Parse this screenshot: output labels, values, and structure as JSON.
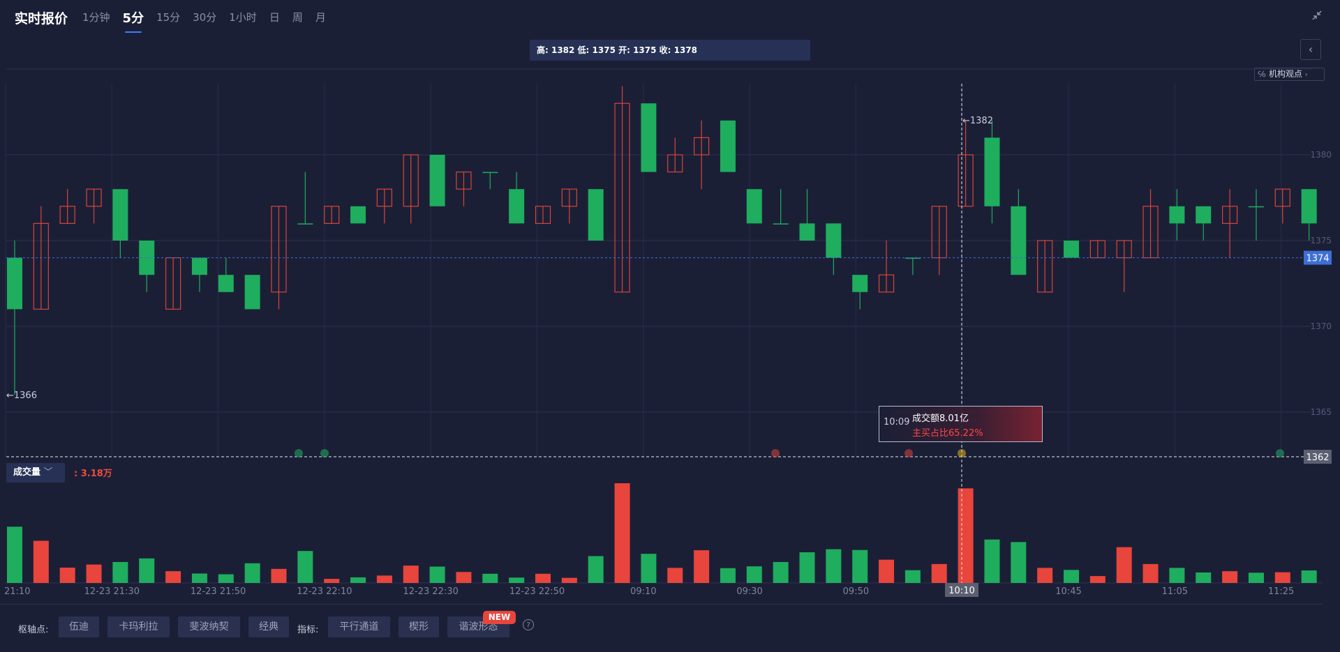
{
  "app": {
    "title": "实时报价"
  },
  "tabs": [
    {
      "label": "1分钟",
      "active": false
    },
    {
      "label": "5分",
      "active": true
    },
    {
      "label": "15分",
      "active": false
    },
    {
      "label": "30分",
      "active": false
    },
    {
      "label": "1小时",
      "active": false
    },
    {
      "label": "日",
      "active": false
    },
    {
      "label": "周",
      "active": false
    },
    {
      "label": "月",
      "active": false
    }
  ],
  "ohlc_text": "高: 1382 低: 1375 开: 1375 收: 1378",
  "institution_view": "机构观点",
  "volume": {
    "label": "成交量",
    "value": ": 3.18万"
  },
  "tooltip": {
    "time": "10:09",
    "amount": "成交额8.01亿",
    "ratio": "主买占比65.22%"
  },
  "price_tags": {
    "current": "1374",
    "cursor": "1362",
    "high_marker": "←1382",
    "low_marker": "←1366",
    "cursor_time": "10:10"
  },
  "bottom": {
    "pivot_label": "枢轴点:",
    "pivot_options": [
      "伍迪",
      "卡玛利拉",
      "斐波纳契",
      "经典"
    ],
    "indicator_label": "指标:",
    "indicator_options": [
      "平行通道",
      "楔形",
      "谐波形态"
    ],
    "new_badge": "NEW",
    "help": "?"
  },
  "colors": {
    "up": "#e8453c",
    "down": "#1fad5e",
    "background": "#1b1f36",
    "accent": "#3d6fd6"
  },
  "chart_data": {
    "type": "candlestick",
    "yticks": [
      1380,
      1375,
      1370,
      1365
    ],
    "xticks": [
      "21:10",
      "12-23 21:30",
      "12-23 21:50",
      "12-23 22:10",
      "12-23 22:30",
      "12-23 22:50",
      "09:10",
      "09:30",
      "09:50",
      "10:10",
      "10:45",
      "11:05",
      "11:25"
    ],
    "current_price": 1374,
    "candles": [
      {
        "o": 1374,
        "c": 1371,
        "h": 1375,
        "l": 1366
      },
      {
        "o": 1371,
        "c": 1376,
        "h": 1377,
        "l": 1371
      },
      {
        "o": 1376,
        "c": 1377,
        "h": 1378,
        "l": 1376
      },
      {
        "o": 1377,
        "c": 1378,
        "h": 1378,
        "l": 1376
      },
      {
        "o": 1378,
        "c": 1375,
        "h": 1378,
        "l": 1374
      },
      {
        "o": 1375,
        "c": 1373,
        "h": 1375,
        "l": 1372
      },
      {
        "o": 1371,
        "c": 1374,
        "h": 1374,
        "l": 1371
      },
      {
        "o": 1374,
        "c": 1373,
        "h": 1374,
        "l": 1372
      },
      {
        "o": 1373,
        "c": 1372,
        "h": 1374,
        "l": 1372
      },
      {
        "o": 1373,
        "c": 1371,
        "h": 1373,
        "l": 1371
      },
      {
        "o": 1372,
        "c": 1377,
        "h": 1377,
        "l": 1371
      },
      {
        "o": 1376,
        "c": 1376,
        "h": 1379,
        "l": 1376
      },
      {
        "o": 1376,
        "c": 1377,
        "h": 1377,
        "l": 1376
      },
      {
        "o": 1377,
        "c": 1376,
        "h": 1377,
        "l": 1376
      },
      {
        "o": 1377,
        "c": 1378,
        "h": 1378,
        "l": 1376
      },
      {
        "o": 1377,
        "c": 1380,
        "h": 1380,
        "l": 1376
      },
      {
        "o": 1380,
        "c": 1377,
        "h": 1380,
        "l": 1377
      },
      {
        "o": 1378,
        "c": 1379,
        "h": 1379,
        "l": 1377
      },
      {
        "o": 1379,
        "c": 1379,
        "h": 1379,
        "l": 1378
      },
      {
        "o": 1378,
        "c": 1376,
        "h": 1379,
        "l": 1376
      },
      {
        "o": 1376,
        "c": 1377,
        "h": 1377,
        "l": 1376
      },
      {
        "o": 1377,
        "c": 1378,
        "h": 1378,
        "l": 1376
      },
      {
        "o": 1378,
        "c": 1375,
        "h": 1378,
        "l": 1375
      },
      {
        "o": 1372,
        "c": 1383,
        "h": 1384,
        "l": 1372
      },
      {
        "o": 1383,
        "c": 1379,
        "h": 1383,
        "l": 1379
      },
      {
        "o": 1379,
        "c": 1380,
        "h": 1381,
        "l": 1379
      },
      {
        "o": 1380,
        "c": 1381,
        "h": 1382,
        "l": 1378
      },
      {
        "o": 1382,
        "c": 1379,
        "h": 1382,
        "l": 1379
      },
      {
        "o": 1378,
        "c": 1376,
        "h": 1378,
        "l": 1376
      },
      {
        "o": 1376,
        "c": 1376,
        "h": 1378,
        "l": 1376
      },
      {
        "o": 1376,
        "c": 1375,
        "h": 1378,
        "l": 1375
      },
      {
        "o": 1376,
        "c": 1374,
        "h": 1376,
        "l": 1373
      },
      {
        "o": 1373,
        "c": 1372,
        "h": 1373,
        "l": 1371
      },
      {
        "o": 1372,
        "c": 1373,
        "h": 1375,
        "l": 1372
      },
      {
        "o": 1374,
        "c": 1374,
        "h": 1374,
        "l": 1373
      },
      {
        "o": 1374,
        "c": 1377,
        "h": 1377,
        "l": 1373
      },
      {
        "o": 1377,
        "c": 1380,
        "h": 1382,
        "l": 1377
      },
      {
        "o": 1381,
        "c": 1377,
        "h": 1382,
        "l": 1376
      },
      {
        "o": 1377,
        "c": 1373,
        "h": 1378,
        "l": 1373
      },
      {
        "o": 1372,
        "c": 1375,
        "h": 1375,
        "l": 1372
      },
      {
        "o": 1375,
        "c": 1374,
        "h": 1375,
        "l": 1374
      },
      {
        "o": 1374,
        "c": 1375,
        "h": 1375,
        "l": 1374
      },
      {
        "o": 1374,
        "c": 1375,
        "h": 1375,
        "l": 1372
      },
      {
        "o": 1374,
        "c": 1377,
        "h": 1378,
        "l": 1374
      },
      {
        "o": 1377,
        "c": 1376,
        "h": 1378,
        "l": 1375
      },
      {
        "o": 1377,
        "c": 1376,
        "h": 1377,
        "l": 1375
      },
      {
        "o": 1376,
        "c": 1377,
        "h": 1378,
        "l": 1374
      },
      {
        "o": 1377,
        "c": 1377,
        "h": 1378,
        "l": 1375
      },
      {
        "o": 1377,
        "c": 1378,
        "h": 1378,
        "l": 1376
      },
      {
        "o": 1378,
        "c": 1376,
        "h": 1378,
        "l": 1375
      }
    ],
    "volumes": [
      {
        "v": 2.2,
        "up": false
      },
      {
        "v": 1.65,
        "up": true
      },
      {
        "v": 0.6,
        "up": true
      },
      {
        "v": 0.72,
        "up": true
      },
      {
        "v": 0.82,
        "up": false
      },
      {
        "v": 0.96,
        "up": false
      },
      {
        "v": 0.46,
        "up": true
      },
      {
        "v": 0.37,
        "up": false
      },
      {
        "v": 0.34,
        "up": false
      },
      {
        "v": 0.77,
        "up": false
      },
      {
        "v": 0.55,
        "up": true
      },
      {
        "v": 1.25,
        "up": false
      },
      {
        "v": 0.16,
        "up": true
      },
      {
        "v": 0.22,
        "up": false
      },
      {
        "v": 0.29,
        "up": true
      },
      {
        "v": 0.68,
        "up": true
      },
      {
        "v": 0.64,
        "up": false
      },
      {
        "v": 0.43,
        "up": true
      },
      {
        "v": 0.36,
        "up": false
      },
      {
        "v": 0.21,
        "up": false
      },
      {
        "v": 0.36,
        "up": true
      },
      {
        "v": 0.2,
        "up": true
      },
      {
        "v": 1.05,
        "up": false
      },
      {
        "v": 3.9,
        "up": true
      },
      {
        "v": 1.14,
        "up": false
      },
      {
        "v": 0.59,
        "up": true
      },
      {
        "v": 1.28,
        "up": true
      },
      {
        "v": 0.58,
        "up": false
      },
      {
        "v": 0.65,
        "up": false
      },
      {
        "v": 0.82,
        "up": false
      },
      {
        "v": 1.2,
        "up": false
      },
      {
        "v": 1.32,
        "up": false
      },
      {
        "v": 1.29,
        "up": false
      },
      {
        "v": 0.91,
        "up": true
      },
      {
        "v": 0.5,
        "up": false
      },
      {
        "v": 0.74,
        "up": true
      },
      {
        "v": 3.7,
        "up": true
      },
      {
        "v": 1.7,
        "up": false
      },
      {
        "v": 1.6,
        "up": false
      },
      {
        "v": 0.59,
        "up": true
      },
      {
        "v": 0.51,
        "up": false
      },
      {
        "v": 0.27,
        "up": true
      },
      {
        "v": 1.4,
        "up": true
      },
      {
        "v": 0.74,
        "up": true
      },
      {
        "v": 0.59,
        "up": false
      },
      {
        "v": 0.41,
        "up": false
      },
      {
        "v": 0.46,
        "up": true
      },
      {
        "v": 0.4,
        "up": false
      },
      {
        "v": 0.42,
        "up": true
      },
      {
        "v": 0.49,
        "up": false
      }
    ]
  }
}
